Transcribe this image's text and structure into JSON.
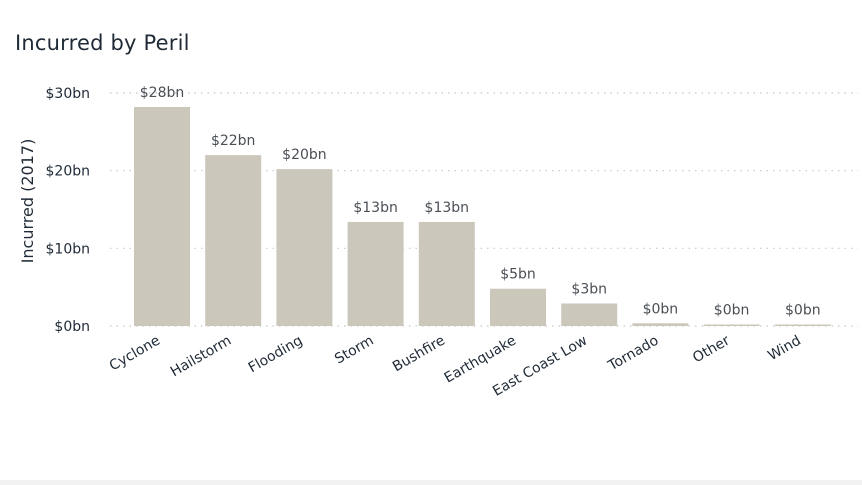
{
  "title": "Incurred by Peril",
  "colors": {
    "bar": "#ccc7bb",
    "grid": "#c8c8c8",
    "text": "#1f2a36"
  },
  "chart_data": {
    "type": "bar",
    "title": "Incurred by Peril",
    "xlabel": "",
    "ylabel": "Incurred (2017)",
    "ylim": [
      0,
      30
    ],
    "yticks": [
      "$0bn",
      "$10bn",
      "$20bn",
      "$30bn"
    ],
    "grid": true,
    "categories": [
      "Cyclone",
      "Hailstorm",
      "Flooding",
      "Storm",
      "Bushfire",
      "Earthquake",
      "East Coast Low",
      "Tornado",
      "Other",
      "Wind"
    ],
    "values": [
      28.2,
      22.0,
      20.2,
      13.4,
      13.4,
      4.8,
      2.9,
      0.35,
      0.15,
      0.15
    ],
    "data_labels": [
      "$28bn",
      "$22bn",
      "$20bn",
      "$13bn",
      "$13bn",
      "$5bn",
      "$3bn",
      "$0bn",
      "$0bn",
      "$0bn"
    ]
  }
}
